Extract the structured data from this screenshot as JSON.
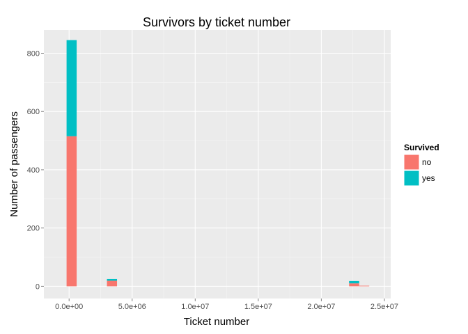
{
  "chart_data": {
    "type": "bar",
    "title": "Survivors by ticket number",
    "xlabel": "Ticket number",
    "ylabel": "Number of passengers",
    "xlim": [
      -2000000,
      25500000
    ],
    "ylim": [
      -42,
      880
    ],
    "x_ticks": [
      0,
      5000000,
      10000000,
      15000000,
      20000000,
      25000000
    ],
    "x_tick_labels": [
      "0.0e+00",
      "5.0e+06",
      "1.0e+07",
      "1.5e+07",
      "2.0e+07",
      "2.5e+07"
    ],
    "y_ticks": [
      0,
      200,
      400,
      600,
      800
    ],
    "y_tick_labels": [
      "0",
      "200",
      "400",
      "600",
      "800"
    ],
    "grid": true,
    "bin_width": 800000,
    "bins": [
      {
        "x_start": -200000,
        "no": 515,
        "yes": 330
      },
      {
        "x_start": 3000000,
        "no": 19,
        "yes": 6
      },
      {
        "x_start": 22200000,
        "no": 10,
        "yes": 8
      },
      {
        "x_start": 23000000,
        "no": 2,
        "yes": 0
      }
    ],
    "legend": {
      "title": "Survived",
      "position": "right",
      "entries": [
        {
          "key": "no",
          "label": "no",
          "color": "#F8766D"
        },
        {
          "key": "yes",
          "label": "yes",
          "color": "#00BFC4"
        }
      ]
    },
    "colors": {
      "panel": "#EBEBEB",
      "grid_major": "#FFFFFF",
      "grid_minor": "#F5F5F5"
    }
  }
}
